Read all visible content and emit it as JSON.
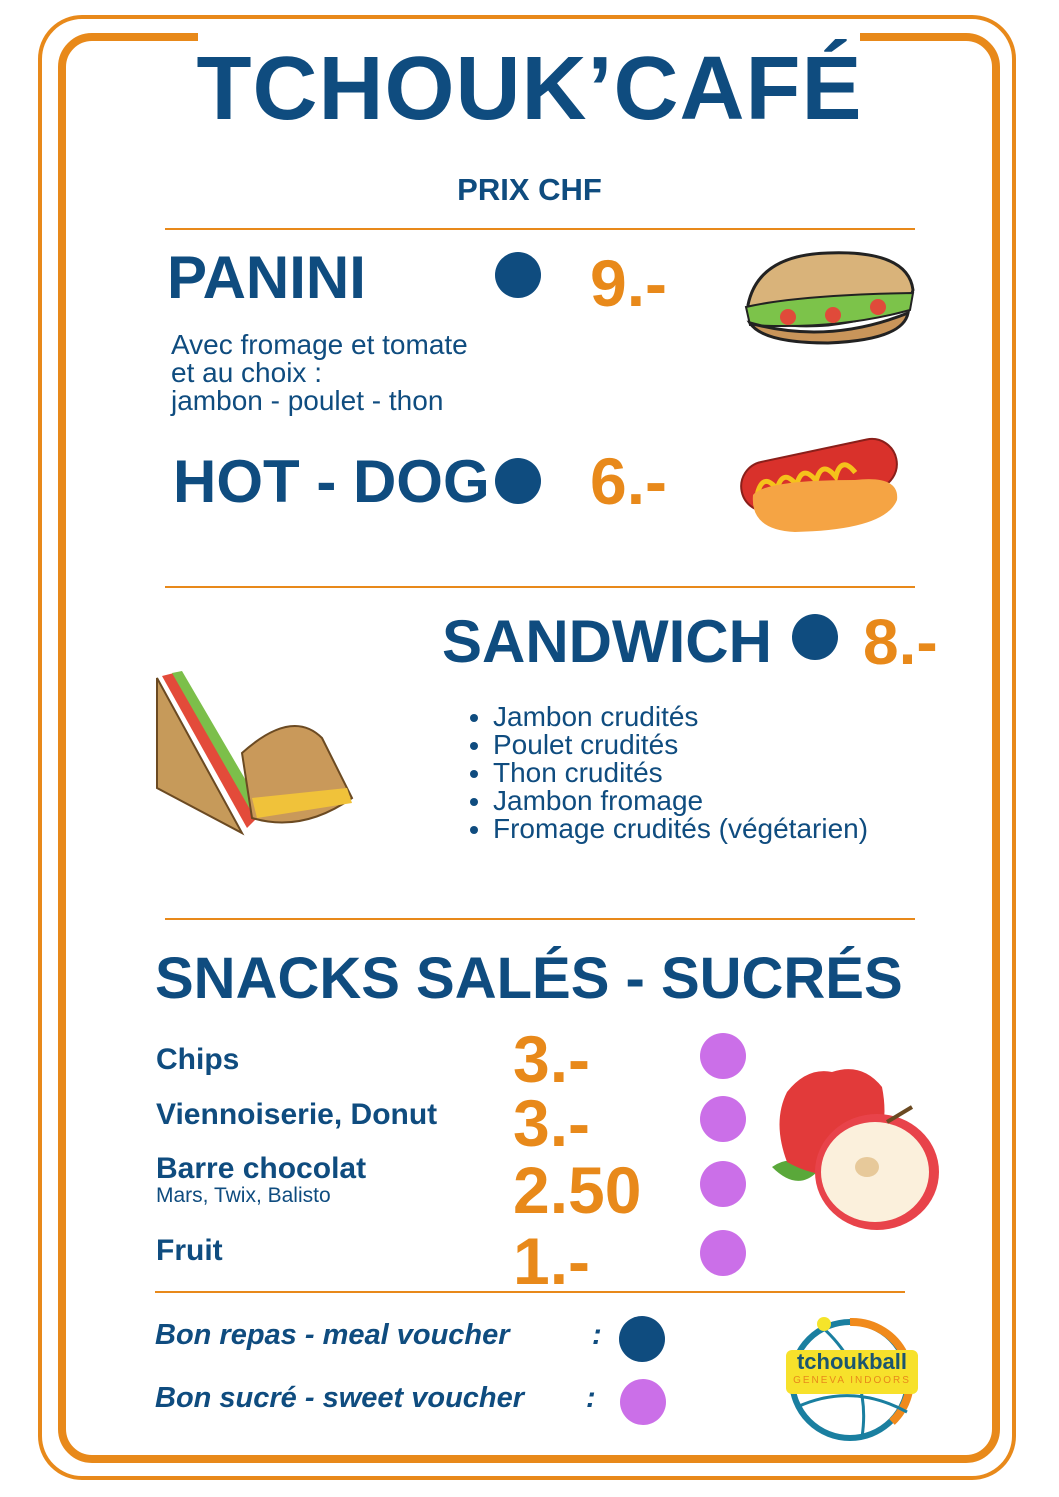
{
  "header": {
    "title": "TCHOUK’CAFÉ",
    "subtitle": "PRIX CHF"
  },
  "panini": {
    "name": "PANINI",
    "price": "9.-",
    "description": [
      "Avec fromage et tomate",
      "et au choix :",
      "jambon - poulet - thon"
    ]
  },
  "hotdog": {
    "name": "HOT - DOG",
    "price": "6.-"
  },
  "sandwich": {
    "name": "SANDWICH",
    "price": "8.-",
    "options": [
      "Jambon crudités",
      "Poulet crudités",
      "Thon crudités",
      "Jambon fromage",
      "Fromage crudités (végétarien)"
    ]
  },
  "snacks": {
    "title": "SNACKS SALÉS - SUCRÉS",
    "items": [
      {
        "name": "Chips",
        "price": "3.-"
      },
      {
        "name": "Viennoiserie, Donut",
        "price": "3.-"
      },
      {
        "name": "Barre chocolat",
        "detail": "Mars, Twix, Balisto",
        "price": "2.50"
      },
      {
        "name": "Fruit",
        "price": "1.-"
      }
    ]
  },
  "vouchers": [
    {
      "label": "Bon repas - meal voucher",
      "sep": ":",
      "color": "#0f4c7f"
    },
    {
      "label": "Bon sucré - sweet voucher",
      "sep": ":",
      "color": "#cb6fe8"
    }
  ],
  "logo": {
    "line1": "tchoukball",
    "line2": "GENEVA INDOORS"
  },
  "colors": {
    "orange": "#e8891a",
    "navy": "#0f4c7f",
    "purple": "#cb6fe8"
  }
}
